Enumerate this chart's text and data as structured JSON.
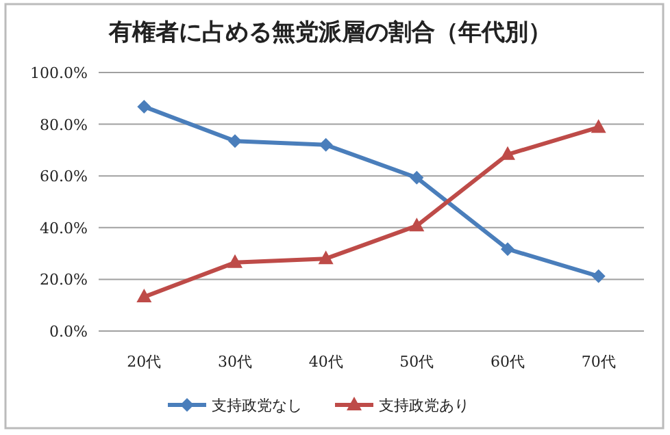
{
  "chart_data": {
    "type": "line",
    "title": "有権者に占める無党派層の割合（年代別）",
    "categories": [
      "20代",
      "30代",
      "40代",
      "50代",
      "60代",
      "70代"
    ],
    "series": [
      {
        "name": "支持政党なし",
        "color": "#4a7ebb",
        "marker": "diamond",
        "values": [
          86.8,
          73.5,
          72.0,
          59.3,
          31.7,
          21.2
        ]
      },
      {
        "name": "支持政党あり",
        "color": "#be4b48",
        "marker": "triangle",
        "values": [
          13.2,
          26.5,
          28.0,
          40.7,
          68.3,
          78.8
        ]
      }
    ],
    "ylim": [
      0,
      100
    ],
    "yticks": [
      {
        "value": 0,
        "label": "0.0%"
      },
      {
        "value": 20,
        "label": "20.0%"
      },
      {
        "value": 40,
        "label": "40.0%"
      },
      {
        "value": 60,
        "label": "60.0%"
      },
      {
        "value": 80,
        "label": "80.0%"
      },
      {
        "value": 100,
        "label": "100.0%"
      }
    ],
    "grid": "y",
    "legend": "bottom"
  }
}
